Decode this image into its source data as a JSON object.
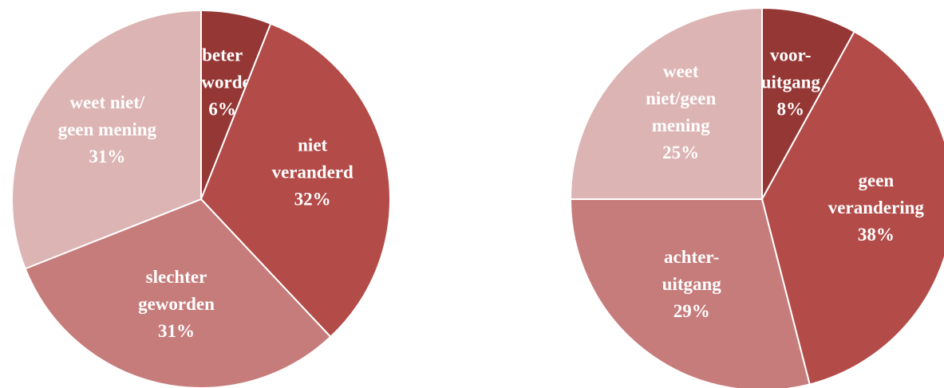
{
  "chart_data": [
    {
      "type": "pie",
      "categories": [
        "beter\ngeworden",
        "niet\nveranderd",
        "slechter\ngeworden",
        "weet niet/\ngeen mening"
      ],
      "values": [
        6,
        32,
        31,
        31
      ],
      "value_labels": [
        "6%",
        "32%",
        "31%",
        "31%"
      ],
      "colors": [
        "#953735",
        "#b34b48",
        "#c67c7b",
        "#dcb4b3"
      ]
    },
    {
      "type": "pie",
      "categories": [
        "voor-\nuitgang",
        "geen\nverandering",
        "achter-\nuitgang",
        "weet\nniet/geen\nmening"
      ],
      "values": [
        8,
        38,
        29,
        25
      ],
      "value_labels": [
        "8%",
        "38%",
        "29%",
        "25%"
      ],
      "colors": [
        "#953735",
        "#b34b48",
        "#c67c7b",
        "#dcb4b3"
      ]
    }
  ]
}
